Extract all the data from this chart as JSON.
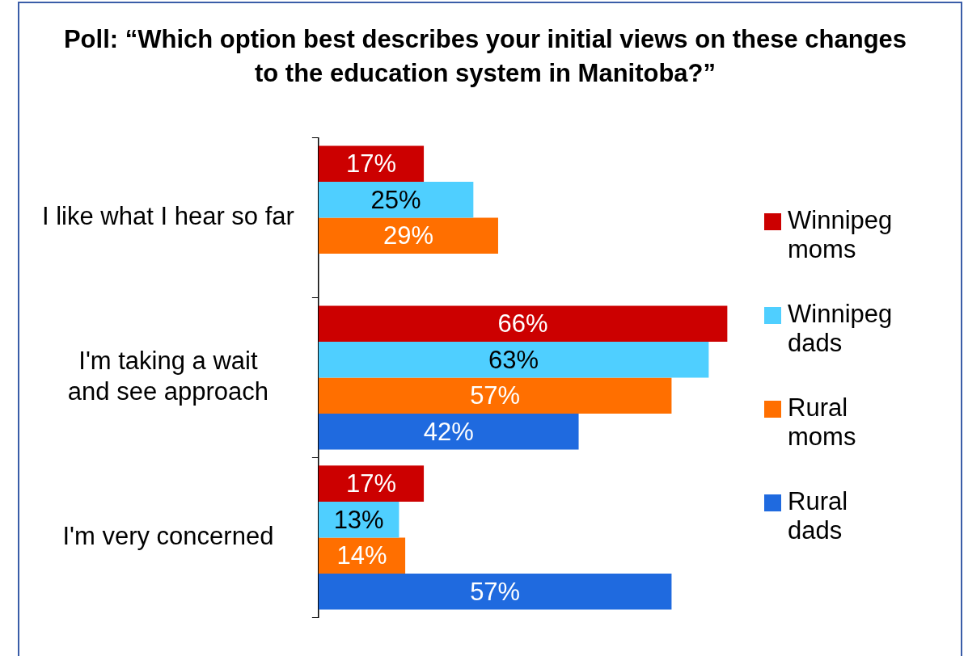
{
  "chart_data": {
    "type": "bar",
    "orientation": "horizontal",
    "title": "Poll: “Which option best describes your initial views on these changes to the education system in Manitoba?”",
    "categories": [
      "I like what I hear so far",
      "I'm taking a wait and see approach",
      "I'm very concerned"
    ],
    "series": [
      {
        "name": "Winnipeg moms",
        "color": "#cc0000",
        "values": [
          17,
          66,
          17
        ],
        "value_labels": [
          "17%",
          "66%",
          "17%"
        ]
      },
      {
        "name": "Winnipeg dads",
        "color": "#4fcfff",
        "values": [
          25,
          63,
          13
        ],
        "value_labels": [
          "25%",
          "63%",
          "13%"
        ]
      },
      {
        "name": "Rural moms",
        "color": "#ff6f00",
        "values": [
          29,
          57,
          14
        ],
        "value_labels": [
          "29%",
          "57%",
          "14%"
        ]
      },
      {
        "name": "Rural dads",
        "color": "#1f6adf",
        "values": [
          null,
          42,
          57
        ],
        "value_labels": [
          null,
          "42%",
          "57%"
        ]
      }
    ],
    "legend": "right",
    "tick_labels": "y"
  }
}
